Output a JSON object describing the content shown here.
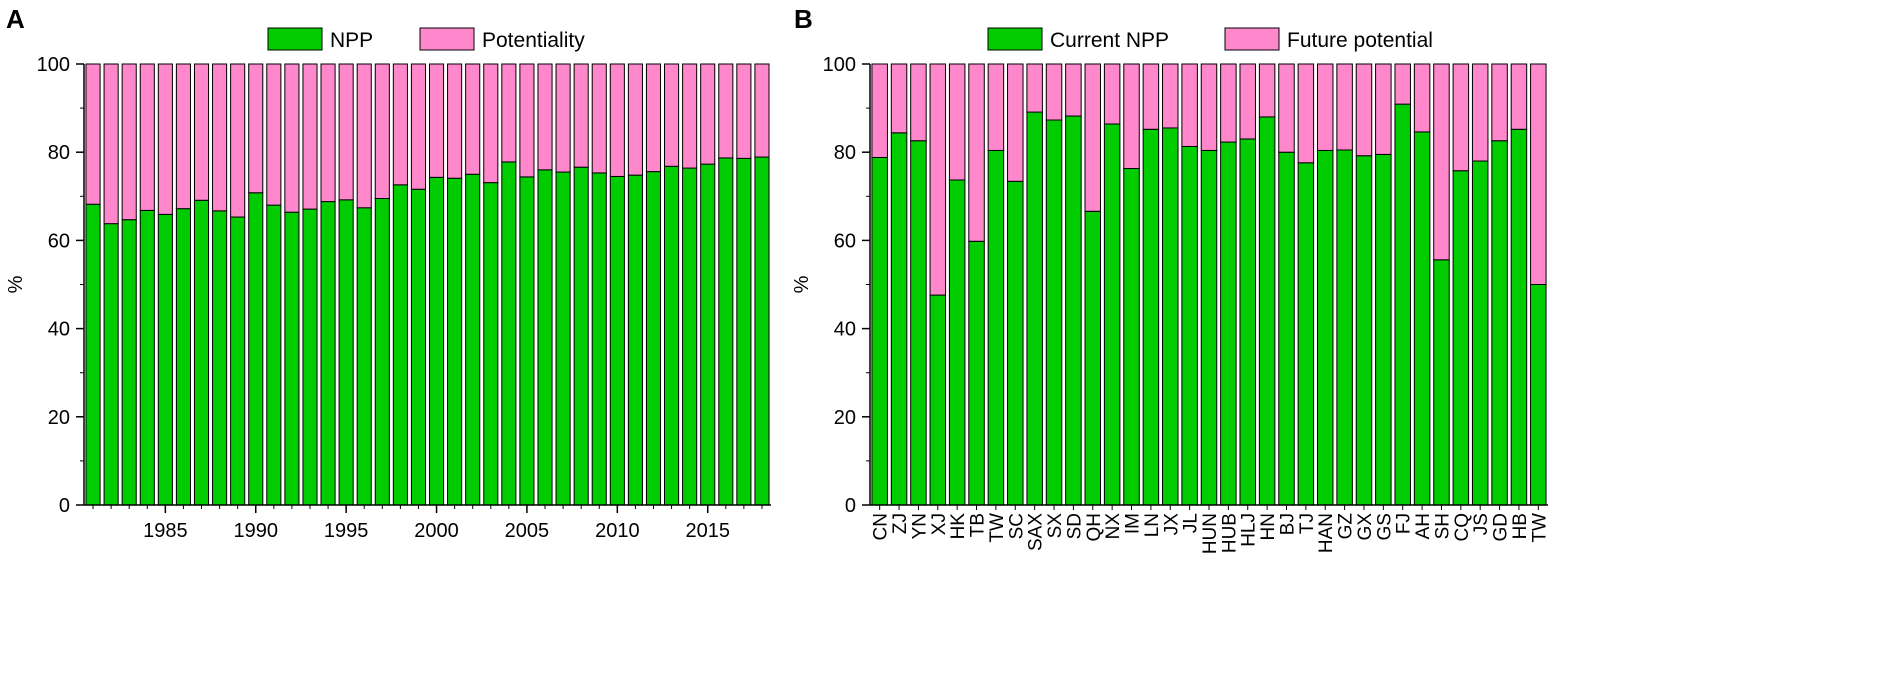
{
  "panels": [
    {
      "letter": "A",
      "chart_data": {
        "type": "bar",
        "stacked": true,
        "title": "",
        "xlabel": "",
        "ylabel": "%",
        "ylim": [
          0,
          100
        ],
        "yticks": [
          0,
          20,
          40,
          60,
          80,
          100
        ],
        "xtick_labels": [
          {
            "category": "1985",
            "label": "1985"
          },
          {
            "category": "1990",
            "label": "1990"
          },
          {
            "category": "1995",
            "label": "1995"
          },
          {
            "category": "2000",
            "label": "2000"
          },
          {
            "category": "2005",
            "label": "2005"
          },
          {
            "category": "2010",
            "label": "2010"
          },
          {
            "category": "2015",
            "label": "2015"
          }
        ],
        "categories": [
          "1981",
          "1982",
          "1983",
          "1984",
          "1985",
          "1986",
          "1987",
          "1988",
          "1989",
          "1990",
          "1991",
          "1992",
          "1993",
          "1994",
          "1995",
          "1996",
          "1997",
          "1998",
          "1999",
          "2000",
          "2001",
          "2002",
          "2003",
          "2004",
          "2005",
          "2006",
          "2007",
          "2008",
          "2009",
          "2010",
          "2011",
          "2012",
          "2013",
          "2014",
          "2015",
          "2016",
          "2017",
          "2018"
        ],
        "legend_position": "top",
        "series": [
          {
            "name": "NPP",
            "color": "#00cc00",
            "values": [
              68.2,
              63.8,
              64.7,
              66.8,
              65.9,
              67.2,
              69.1,
              66.7,
              65.3,
              70.8,
              68.0,
              66.4,
              67.1,
              68.8,
              69.2,
              67.4,
              69.5,
              72.6,
              71.6,
              74.3,
              74.1,
              75.0,
              73.1,
              77.8,
              74.4,
              76.0,
              75.5,
              76.6,
              75.3,
              74.5,
              74.8,
              75.6,
              76.8,
              76.4,
              77.3,
              78.7,
              78.6,
              78.9
            ]
          },
          {
            "name": "Potentiality",
            "color": "#ff88cc",
            "values": [
              31.8,
              36.2,
              35.3,
              33.2,
              34.1,
              32.8,
              30.9,
              33.3,
              34.7,
              29.2,
              32.0,
              33.6,
              32.9,
              31.2,
              30.8,
              32.6,
              30.5,
              27.4,
              28.4,
              25.7,
              25.9,
              25.0,
              26.9,
              22.2,
              25.6,
              24.0,
              24.5,
              23.4,
              24.7,
              25.5,
              25.2,
              24.4,
              23.2,
              23.6,
              22.7,
              21.3,
              21.4,
              21.1
            ]
          }
        ]
      }
    },
    {
      "letter": "B",
      "chart_data": {
        "type": "bar",
        "stacked": true,
        "title": "",
        "xlabel": "",
        "ylabel": "%",
        "ylim": [
          0,
          100
        ],
        "yticks": [
          0,
          20,
          40,
          60,
          80,
          100
        ],
        "categories": [
          "CN",
          "ZJ",
          "YN",
          "XJ",
          "HK",
          "TB",
          "TW",
          "SC",
          "SAX",
          "SX",
          "SD",
          "QH",
          "NX",
          "IM",
          "LN",
          "JX",
          "JL",
          "HUN",
          "HUB",
          "HLJ",
          "HN",
          "BJ",
          "TJ",
          "HAN",
          "GZ",
          "GX",
          "GS",
          "FJ",
          "AH",
          "SH",
          "CQ",
          "JS",
          "GD",
          "HB",
          "TW"
        ],
        "legend_position": "top",
        "series": [
          {
            "name": "Current NPP",
            "color": "#00cc00",
            "values": [
              78.8,
              84.4,
              82.6,
              47.6,
              73.7,
              59.8,
              80.4,
              73.4,
              89.1,
              87.3,
              88.2,
              66.6,
              86.4,
              76.3,
              85.2,
              85.5,
              81.3,
              80.4,
              82.3,
              83.0,
              88.0,
              80.0,
              77.6,
              80.4,
              80.5,
              79.2,
              79.5,
              90.9,
              84.6,
              55.6,
              75.8,
              78.0,
              82.6,
              85.2,
              50.0
            ]
          },
          {
            "name": "Future potential",
            "color": "#ff88cc",
            "values": [
              21.2,
              15.6,
              17.4,
              52.4,
              26.3,
              40.2,
              19.6,
              26.6,
              10.9,
              12.7,
              11.8,
              33.4,
              13.6,
              23.7,
              14.8,
              14.5,
              18.7,
              19.6,
              17.7,
              17.0,
              12.0,
              20.0,
              22.4,
              19.6,
              19.5,
              20.8,
              20.5,
              9.1,
              15.4,
              44.4,
              24.2,
              22.0,
              17.4,
              14.8,
              50.0
            ]
          }
        ]
      }
    }
  ]
}
